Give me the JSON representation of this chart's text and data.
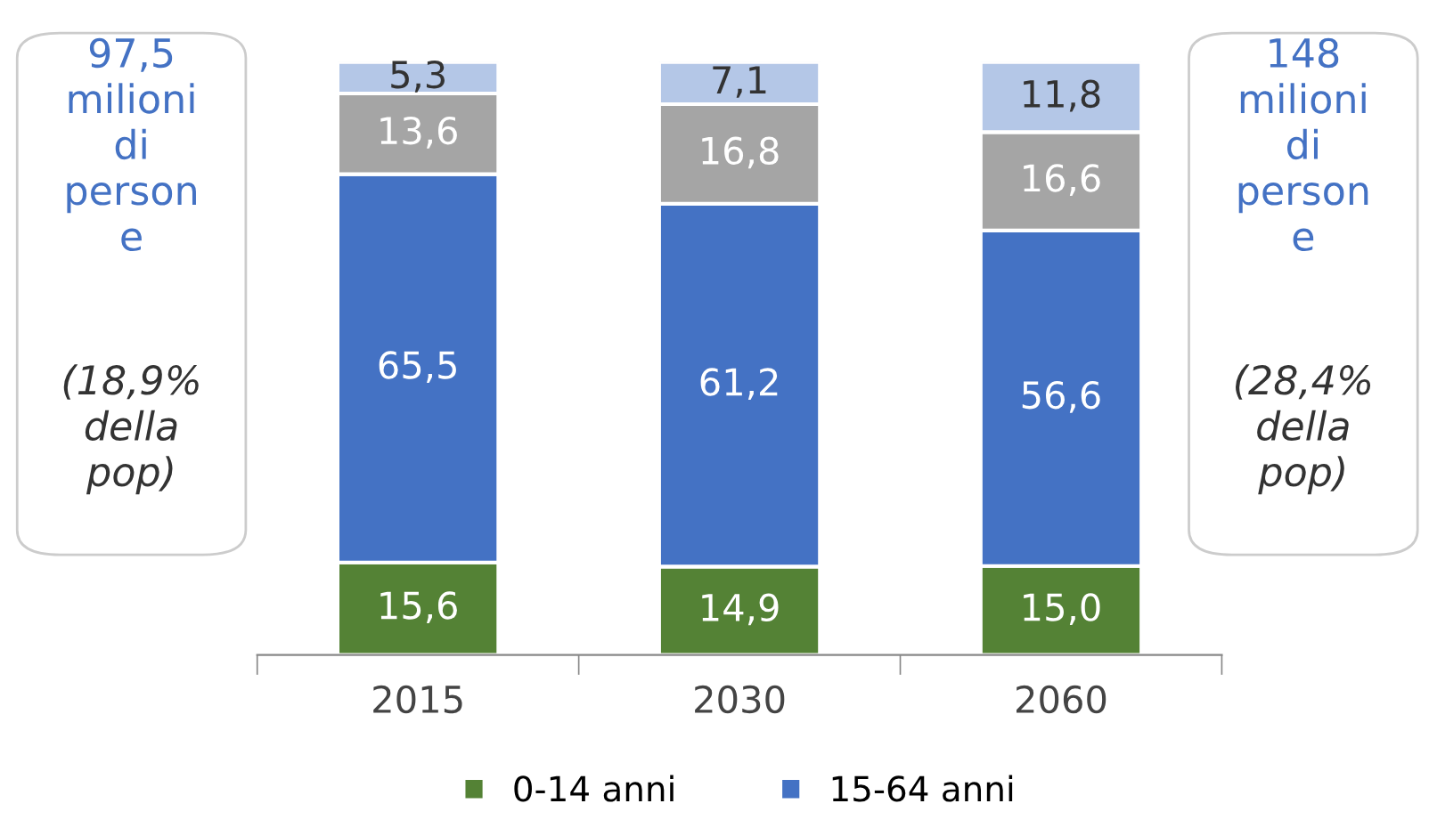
{
  "chart_data": {
    "type": "bar",
    "stacked": true,
    "categories": [
      "2015",
      "2030",
      "2060"
    ],
    "series": [
      {
        "name": "0-14 anni",
        "color": "#548235",
        "values": [
          15.6,
          14.9,
          15.0
        ],
        "value_labels": [
          "15,6",
          "14,9",
          "15,0"
        ]
      },
      {
        "name": "15-64 anni",
        "color": "#4472c4",
        "values": [
          65.5,
          61.2,
          56.6
        ],
        "value_labels": [
          "65,5",
          "61,2",
          "56,6"
        ]
      },
      {
        "color": "#a5a5a5",
        "values": [
          13.6,
          16.8,
          16.6
        ],
        "value_labels": [
          "13,6",
          "16,8",
          "16,6"
        ]
      },
      {
        "color": "#b4c7e7",
        "values": [
          5.3,
          7.1,
          11.8
        ],
        "value_labels": [
          "5,3",
          "7,1",
          "11,8"
        ]
      }
    ],
    "annotations": [
      "97,5\nmilioni\ndi\nperson\ne",
      "(18,9%\ndella\npop)",
      "148\nmilioni\ndi\nperson\ne",
      "(28,4%\ndella\npop)"
    ],
    "legend": "bottom",
    "grid": false
  }
}
